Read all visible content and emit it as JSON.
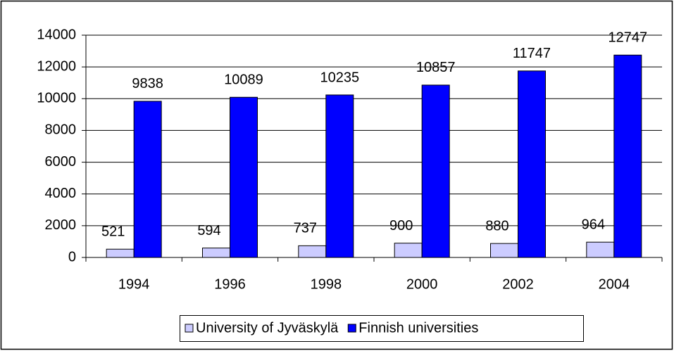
{
  "chart_data": {
    "type": "bar",
    "categories": [
      "1994",
      "1996",
      "1998",
      "2000",
      "2002",
      "2004"
    ],
    "series": [
      {
        "name": "University of Jyväskylä",
        "color": "#ccccff",
        "values": [
          521,
          594,
          737,
          900,
          880,
          964
        ]
      },
      {
        "name": "Finnish universities",
        "color": "#0000ff",
        "values": [
          9838,
          10089,
          10235,
          10857,
          11747,
          12747
        ]
      }
    ],
    "ylim": [
      0,
      14000
    ],
    "yticks": [
      0,
      2000,
      4000,
      6000,
      8000,
      10000,
      12000,
      14000
    ],
    "grid": true,
    "legend": "bottom"
  }
}
